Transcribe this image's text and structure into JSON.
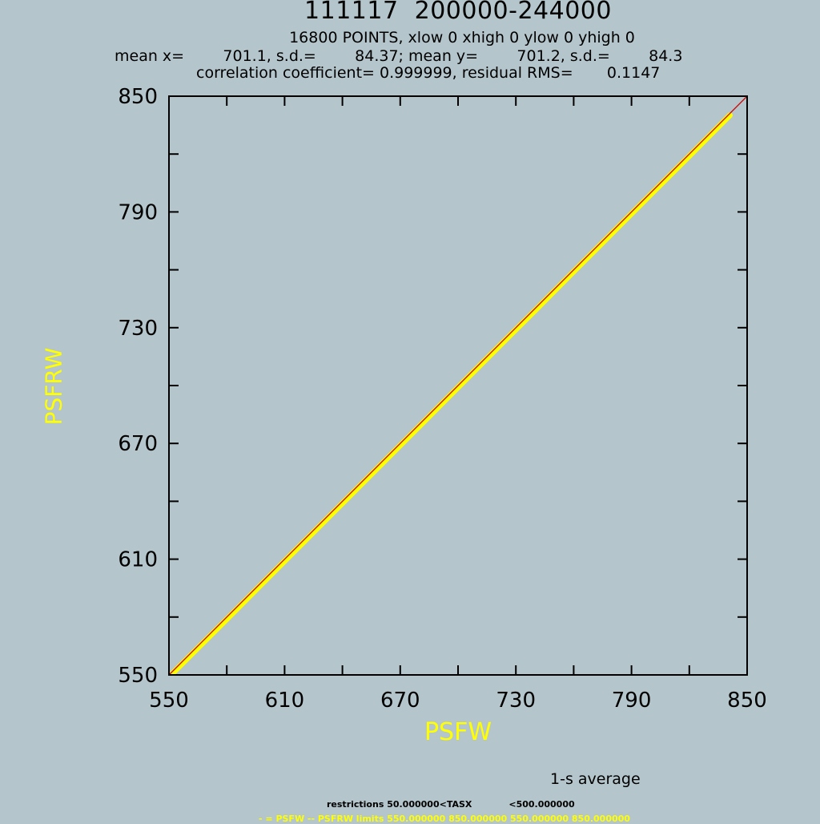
{
  "header": {
    "title": "111117  200000-244000",
    "points_line": "16800 POINTS, xlow 0 xhigh 0 ylow 0 yhigh 0",
    "stats_line": "mean x=        701.1, s.d.=        84.37; mean y=        701.2, s.d.=        84.3",
    "correlation_line": "correlation coefficient= 0.999999, residual RMS=       0.1147"
  },
  "footer": {
    "average_note": "1-s average",
    "restrictions": "restrictions 50.000000<TASX            <500.000000",
    "legend": "- = PSFW -- PSFRW limits 550.000000 850.000000 550.000000 850.000000"
  },
  "colors": {
    "background": "#b4c6cc",
    "data": "#ffff00",
    "reference_line": "#cc0000",
    "axis_labels": "#ffff00"
  },
  "chart_data": {
    "type": "scatter",
    "xlabel": "PSFW",
    "ylabel": "PSFRW",
    "xlim": [
      550,
      850
    ],
    "ylim": [
      550,
      850
    ],
    "xticks": [
      550,
      610,
      670,
      730,
      790,
      850
    ],
    "yticks": [
      550,
      610,
      670,
      730,
      790,
      850
    ],
    "minor_tick_step": 30,
    "reference_line": {
      "from": [
        550,
        550
      ],
      "to": [
        850,
        850
      ]
    },
    "series": [
      {
        "x": [
          552,
          560,
          580,
          600,
          620,
          640,
          660,
          680,
          700,
          720,
          740,
          760,
          780,
          800,
          820,
          840,
          841
        ],
        "y": [
          551.8,
          559.8,
          579.7,
          599.8,
          619.8,
          639.8,
          659.8,
          679.8,
          699.9,
          719.9,
          739.8,
          759.9,
          779.9,
          799.9,
          819.8,
          839.9,
          840.9
        ]
      }
    ],
    "grid": false,
    "legend": "none"
  }
}
